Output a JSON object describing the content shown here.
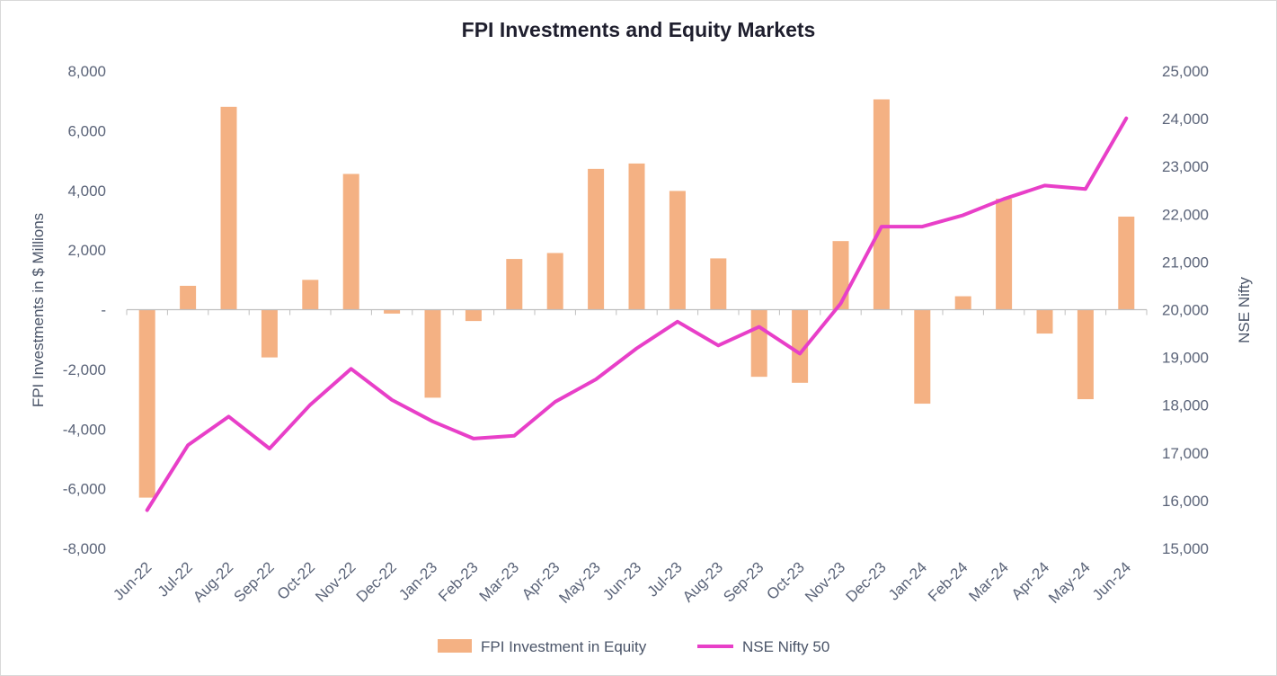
{
  "chart_data": {
    "type": "bar",
    "title": "FPI Investments and Equity Markets",
    "categories": [
      "Jun-22",
      "Jul-22",
      "Aug-22",
      "Sep-22",
      "Oct-22",
      "Nov-22",
      "Dec-22",
      "Jan-23",
      "Feb-23",
      "Mar-23",
      "Apr-23",
      "May-23",
      "Jun-23",
      "Jul-23",
      "Aug-23",
      "Sep-23",
      "Oct-23",
      "Nov-23",
      "Dec-23",
      "Jan-24",
      "Feb-24",
      "Mar-24",
      "Apr-24",
      "May-24",
      "Jun-24"
    ],
    "series": [
      {
        "name": "FPI Investment in Equity",
        "type": "bar",
        "axis": "left",
        "color": "#f4b183",
        "values": [
          -6300,
          800,
          6800,
          -1600,
          1000,
          4550,
          -130,
          -2950,
          -380,
          1700,
          1900,
          4720,
          4900,
          3980,
          1720,
          -2250,
          -2450,
          2300,
          7050,
          -3150,
          450,
          3720,
          -800,
          -3000,
          3120
        ]
      },
      {
        "name": "NSE Nifty 50",
        "type": "line",
        "axis": "right",
        "color": "#e83fc8",
        "values": [
          15800,
          17160,
          17760,
          17090,
          18010,
          18760,
          18110,
          17660,
          17300,
          17360,
          18070,
          18540,
          19190,
          19750,
          19250,
          19640,
          19080,
          20130,
          21740,
          21740,
          21980,
          22320,
          22600,
          22530,
          24010
        ]
      }
    ],
    "ylabel": "FPI Investments in $ Millions",
    "y2label": "NSE Nifty",
    "ylim": [
      -8000,
      8000
    ],
    "y2lim": [
      15000,
      25000
    ],
    "yticks": [
      "8,000",
      "6,000",
      "4,000",
      "2,000",
      "-",
      "-2,000",
      "-4,000",
      "-6,000",
      "-8,000"
    ],
    "y2ticks": [
      "25,000",
      "24,000",
      "23,000",
      "22,000",
      "21,000",
      "20,000",
      "19,000",
      "18,000",
      "17,000",
      "16,000",
      "15,000"
    ],
    "grid": false,
    "legend_position": "bottom"
  }
}
